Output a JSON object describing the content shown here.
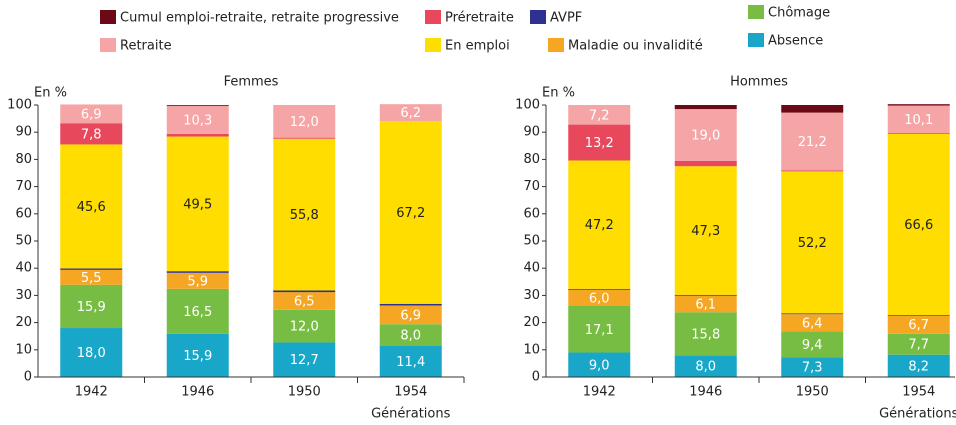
{
  "chart_data": [
    {
      "type": "stacked-bar",
      "title": "Femmes",
      "ylabel": "En %",
      "xlabel": "Générations",
      "categories": [
        "1942",
        "1946",
        "1950",
        "1954"
      ],
      "ylim": [
        0,
        100
      ],
      "yticks": [
        0,
        10,
        20,
        30,
        40,
        50,
        60,
        70,
        80,
        90,
        100
      ],
      "series": [
        {
          "name": "Absence",
          "color": "#19a7c9",
          "values": [
            18.0,
            15.9,
            12.7,
            11.4
          ],
          "value_labels": [
            "18,0",
            "15,9",
            "12,7",
            "11,4"
          ]
        },
        {
          "name": "Chômage",
          "color": "#77bd43",
          "values": [
            15.9,
            16.5,
            12.0,
            8.0
          ],
          "value_labels": [
            "15,9",
            "16,5",
            "12,0",
            "8,0"
          ]
        },
        {
          "name": "Maladie ou invalidité",
          "color": "#f5a623",
          "values": [
            5.5,
            5.9,
            6.5,
            6.9
          ],
          "value_labels": [
            "5,5",
            "5,9",
            "6,5",
            "6,9"
          ]
        },
        {
          "name": "AVPF",
          "color": "#2e3192",
          "values": [
            0.5,
            0.6,
            0.6,
            0.6
          ],
          "value_labels": [
            null,
            null,
            null,
            null
          ]
        },
        {
          "name": "En emploi",
          "color": "#ffdd00",
          "values": [
            45.6,
            49.5,
            55.8,
            67.2
          ],
          "value_labels": [
            "45,6",
            "49,5",
            "55,8",
            "67,2"
          ]
        },
        {
          "name": "Préretraite",
          "color": "#e8485c",
          "values": [
            7.8,
            1.0,
            0.4,
            0
          ],
          "value_labels": [
            "7,8",
            null,
            null,
            null
          ]
        },
        {
          "name": "Retraite",
          "color": "#f5a5a5",
          "values": [
            6.9,
            10.3,
            12.0,
            6.2
          ],
          "value_labels": [
            "6,9",
            "10,3",
            "12,0",
            "6,2"
          ]
        },
        {
          "name": "Cumul emploi-retraite, retraite progressive",
          "color": "#6b0a16",
          "values": [
            0,
            0.3,
            0,
            0
          ],
          "value_labels": [
            null,
            null,
            null,
            null
          ]
        }
      ]
    },
    {
      "type": "stacked-bar",
      "title": "Hommes",
      "ylabel": "En %",
      "xlabel": "Générations",
      "categories": [
        "1942",
        "1946",
        "1950",
        "1954"
      ],
      "ylim": [
        0,
        100
      ],
      "yticks": [
        0,
        10,
        20,
        30,
        40,
        50,
        60,
        70,
        80,
        90,
        100
      ],
      "series": [
        {
          "name": "Absence",
          "color": "#19a7c9",
          "values": [
            9.0,
            8.0,
            7.3,
            8.2
          ],
          "value_labels": [
            "9,0",
            "8,0",
            "7,3",
            "8,2"
          ]
        },
        {
          "name": "Chômage",
          "color": "#77bd43",
          "values": [
            17.1,
            15.8,
            9.4,
            7.7
          ],
          "value_labels": [
            "17,1",
            "15,8",
            "9,4",
            "7,7"
          ]
        },
        {
          "name": "Maladie ou invalidité",
          "color": "#f5a623",
          "values": [
            6.0,
            6.1,
            6.4,
            6.7
          ],
          "value_labels": [
            "6,0",
            "6,1",
            "6,4",
            "6,7"
          ]
        },
        {
          "name": "AVPF",
          "color": "#2e3192",
          "values": [
            0.3,
            0.3,
            0.3,
            0.2
          ],
          "value_labels": [
            null,
            null,
            null,
            null
          ]
        },
        {
          "name": "En emploi",
          "color": "#ffdd00",
          "values": [
            47.2,
            47.3,
            52.2,
            66.6
          ],
          "value_labels": [
            "47,2",
            "47,3",
            "52,2",
            "66,6"
          ]
        },
        {
          "name": "Préretraite",
          "color": "#e8485c",
          "values": [
            13.2,
            2.0,
            0.4,
            0.3
          ],
          "value_labels": [
            "13,2",
            null,
            null,
            null
          ]
        },
        {
          "name": "Retraite",
          "color": "#f5a5a5",
          "values": [
            7.2,
            19.0,
            21.2,
            10.1
          ],
          "value_labels": [
            "7,2",
            "19,0",
            "21,2",
            "10,1"
          ]
        },
        {
          "name": "Cumul emploi-retraite, retraite progressive",
          "color": "#6b0a16",
          "values": [
            0,
            1.5,
            2.8,
            0.5
          ],
          "value_labels": [
            null,
            null,
            null,
            null
          ]
        }
      ]
    }
  ]
}
